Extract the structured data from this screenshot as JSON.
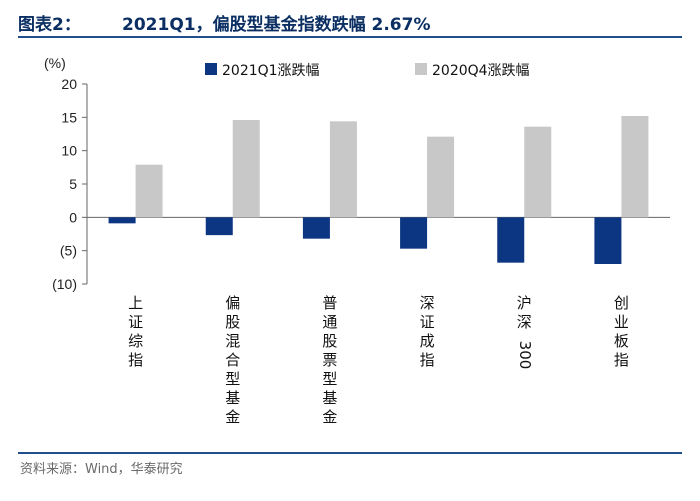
{
  "header": {
    "label": "图表2：",
    "title": "2021Q1，偏股型基金指数跌幅 2.67%"
  },
  "source": "资料来源：Wind，华泰研究",
  "colors": {
    "series_1": "#0c3582",
    "series_2": "#c8c8c8",
    "rule": "#1f4f8f",
    "title": "#0b2f63"
  },
  "chart_data": {
    "type": "bar",
    "ylabel": "(%)",
    "ylim": [
      -10,
      20
    ],
    "yticks": [
      "20",
      "15",
      "10",
      "5",
      "0",
      "(5)",
      "(10)"
    ],
    "ytick_values": [
      20,
      15,
      10,
      5,
      0,
      -5,
      -10
    ],
    "legend_position": "top",
    "grid": false,
    "categories": [
      "上证综指",
      "偏股混合型基金",
      "普通股票型基金",
      "深证成指",
      "沪深300",
      "创业板指"
    ],
    "series": [
      {
        "name": "2021Q1涨跌幅",
        "values": [
          -0.9,
          -2.67,
          -3.2,
          -4.7,
          -6.8,
          -7.0
        ]
      },
      {
        "name": "2020Q4涨跌幅",
        "values": [
          7.9,
          14.6,
          14.4,
          12.1,
          13.6,
          15.2
        ]
      }
    ]
  }
}
